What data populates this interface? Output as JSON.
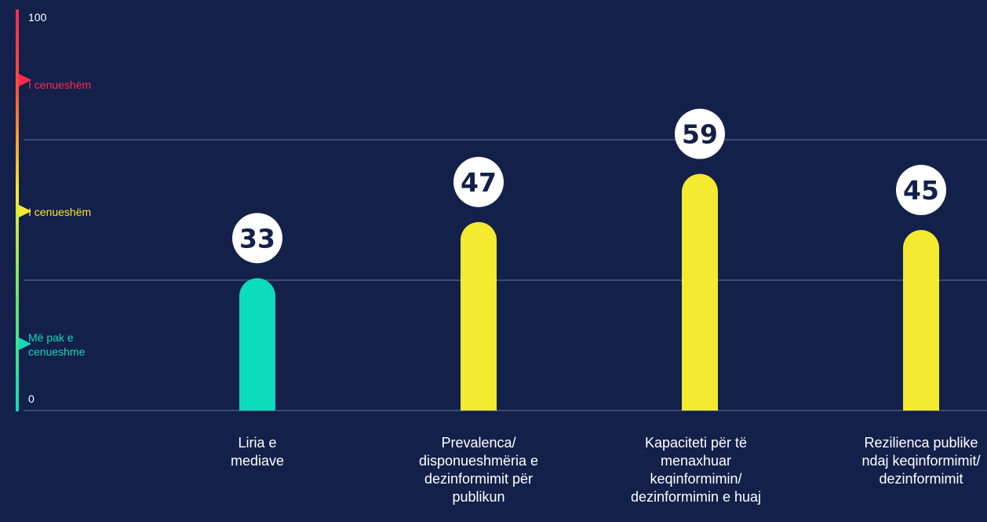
{
  "chart_data": {
    "type": "bar",
    "categories": [
      "Liria e mediave",
      "Prevalenca/ disponueshmëria e dezinformimit për publikun",
      "Kapaciteti për të menaxhuar keqinformimin/ dezinformimin e huaj",
      "Rezilienca publike ndaj keqinformimit/ dezinformimit"
    ],
    "values": [
      33,
      47,
      59,
      45
    ],
    "bar_colors": [
      "#0bdcbc",
      "#f4ea30",
      "#f4ea30",
      "#f4ea30"
    ],
    "ylim": [
      0,
      100
    ],
    "y_ticks": [
      "0",
      "100"
    ],
    "bands": [
      {
        "label": "I cenueshëm",
        "color": "#ff2a4f"
      },
      {
        "label": "I cenueshëm",
        "color": "#f4ea30"
      },
      {
        "label": "Më pak e cenueshme",
        "color": "#14d9b7"
      }
    ],
    "grid": true
  },
  "colors": {
    "background": "#13204a",
    "gridline": "#3c4a72",
    "badge_bg": "#ffffff",
    "badge_text": "#13204a"
  }
}
